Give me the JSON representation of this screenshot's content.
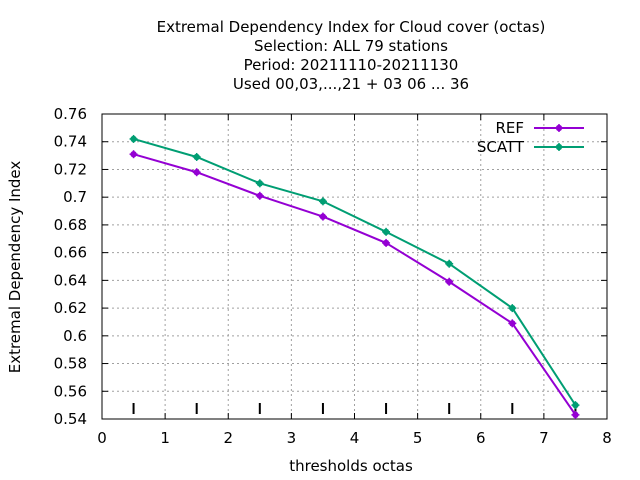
{
  "chart_data": {
    "type": "line",
    "title_lines": [
      "Extremal Dependency Index  for Cloud cover (octas)",
      "Selection: ALL     79 stations",
      "Period: 20211110-20211130",
      "Used  00,03,...,21  + 03 06 ... 36"
    ],
    "xlabel": "thresholds octas",
    "ylabel": "Extremal Dependency Index",
    "xlim": [
      0,
      8
    ],
    "ylim": [
      0.54,
      0.76
    ],
    "x_ticks": [
      0,
      1,
      2,
      3,
      4,
      5,
      6,
      7,
      8
    ],
    "y_ticks": [
      0.54,
      0.56,
      0.58,
      0.6,
      0.62,
      0.64,
      0.66,
      0.68,
      0.7,
      0.72,
      0.74,
      0.76
    ],
    "grid": true,
    "legend_position": "top-right",
    "x": [
      0.5,
      1.5,
      2.5,
      3.5,
      4.5,
      5.5,
      6.5,
      7.5
    ],
    "series": [
      {
        "name": "REF",
        "color": "#9400d3",
        "values": [
          0.731,
          0.718,
          0.701,
          0.686,
          0.667,
          0.639,
          0.609,
          0.543
        ]
      },
      {
        "name": "SCATT",
        "color": "#009e73",
        "values": [
          0.742,
          0.729,
          0.71,
          0.697,
          0.675,
          0.652,
          0.62,
          0.55
        ]
      }
    ],
    "sample_marks_x": [
      0.5,
      1.5,
      2.5,
      3.5,
      4.5,
      5.5,
      6.5,
      7.5
    ]
  }
}
